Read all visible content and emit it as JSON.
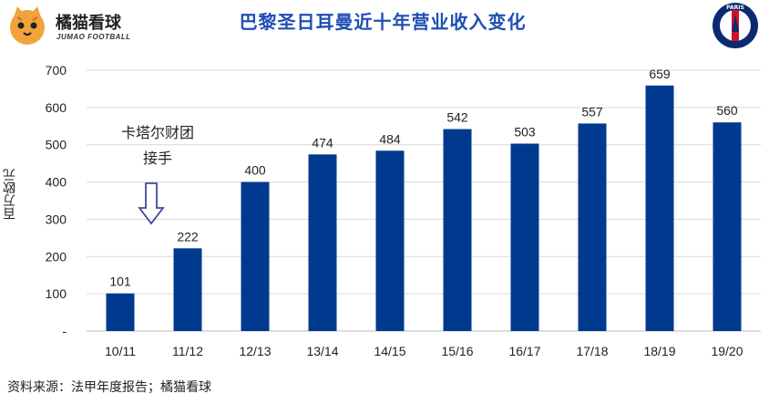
{
  "header": {
    "title": "巴黎圣日耳曼近十年营业收入变化",
    "brand_name": "橘猫看球",
    "brand_sub": "JUMAO FOOTBALL",
    "badge_text": "PARIS SAINT-GERMAIN"
  },
  "annotation": {
    "line1": "卡塔尔财团",
    "line2": "接手"
  },
  "source": "资料来源：法甲年度报告；橘猫看球",
  "colors": {
    "bar": "#003a8f",
    "title": "#1f4eb4",
    "grid": "#d9d9d9"
  },
  "chart_data": {
    "type": "bar",
    "title": "巴黎圣日耳曼近十年营业收入变化",
    "xlabel": "",
    "ylabel": "百万欧元",
    "categories": [
      "10/11",
      "11/12",
      "12/13",
      "13/14",
      "14/15",
      "15/16",
      "16/17",
      "17/18",
      "18/19",
      "19/20"
    ],
    "values": [
      101,
      222,
      400,
      474,
      484,
      542,
      503,
      557,
      659,
      560
    ],
    "yticks": [
      "-",
      "100",
      "200",
      "300",
      "400",
      "500",
      "600",
      "700"
    ],
    "ylim": [
      0,
      700
    ],
    "grid": true
  }
}
